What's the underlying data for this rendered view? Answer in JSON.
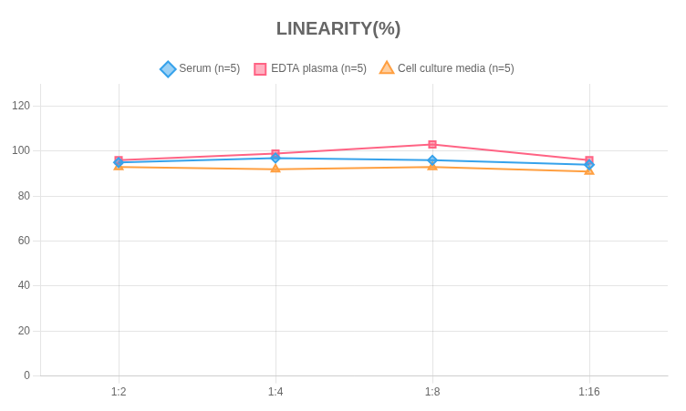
{
  "chart_data": {
    "type": "line",
    "title": "LINEARITY(%)",
    "categories": [
      "1:2",
      "1:4",
      "1:8",
      "1:16"
    ],
    "series": [
      {
        "name": "Serum (n=5)",
        "values": [
          95,
          97,
          96,
          94
        ],
        "marker": "diamond"
      },
      {
        "name": "EDTA plasma (n=5)",
        "values": [
          96,
          99,
          103,
          96
        ],
        "marker": "square"
      },
      {
        "name": "Cell culture media (n=5)",
        "values": [
          93,
          92,
          93,
          91
        ],
        "marker": "triangle"
      }
    ],
    "ylim": [
      0,
      130
    ],
    "yticks": [
      0,
      20,
      40,
      60,
      80,
      100,
      120
    ],
    "grid": true,
    "legend": "top"
  }
}
